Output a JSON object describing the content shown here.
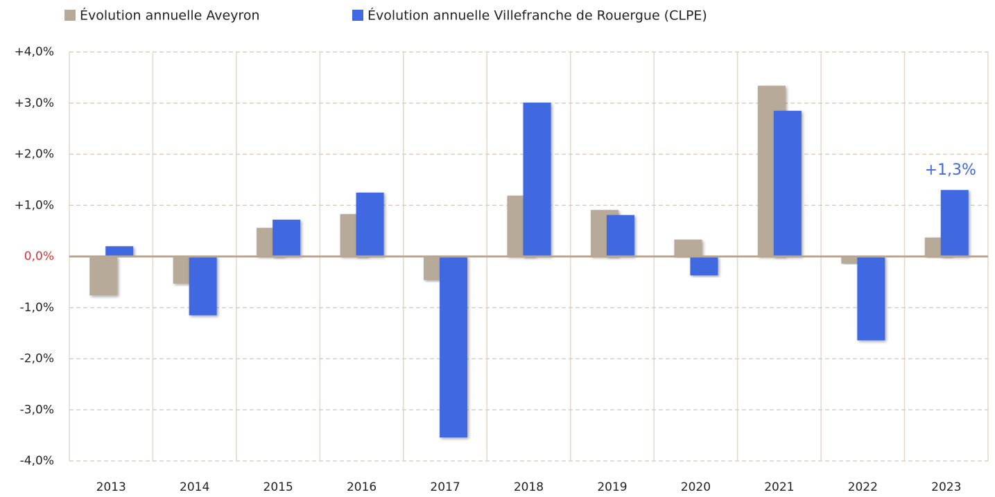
{
  "chart_data": {
    "type": "bar",
    "categories": [
      "2013",
      "2014",
      "2015",
      "2016",
      "2017",
      "2018",
      "2019",
      "2020",
      "2021",
      "2022",
      "2023"
    ],
    "series": [
      {
        "name": "Évolution annuelle Aveyron",
        "color": "#b8aa99",
        "values": [
          -0.76,
          -0.53,
          0.56,
          0.83,
          -0.46,
          1.19,
          0.91,
          0.33,
          3.34,
          -0.14,
          0.37
        ]
      },
      {
        "name": "Évolution annuelle Villefranche de Rouergue (CLPE)",
        "color": "#4169e1",
        "values": [
          0.2,
          -1.15,
          0.72,
          1.25,
          -3.54,
          3.01,
          0.81,
          -0.37,
          2.85,
          -1.64,
          1.3
        ],
        "value_labels": [
          null,
          null,
          null,
          null,
          null,
          null,
          null,
          null,
          null,
          null,
          "+1,3%"
        ]
      }
    ],
    "ylim": [
      -4,
      4
    ],
    "yticks": [
      {
        "value": 4,
        "label": "+4,0%"
      },
      {
        "value": 3,
        "label": "+3,0%"
      },
      {
        "value": 2,
        "label": "+2,0%"
      },
      {
        "value": 1,
        "label": "+1,0%"
      },
      {
        "value": 0,
        "label": "0,0%"
      },
      {
        "value": -1,
        "label": "-1,0%"
      },
      {
        "value": -2,
        "label": "-2,0%"
      },
      {
        "value": -3,
        "label": "-3,0%"
      },
      {
        "value": -4,
        "label": "-4,0%"
      }
    ],
    "grid": true,
    "legend": "top"
  }
}
